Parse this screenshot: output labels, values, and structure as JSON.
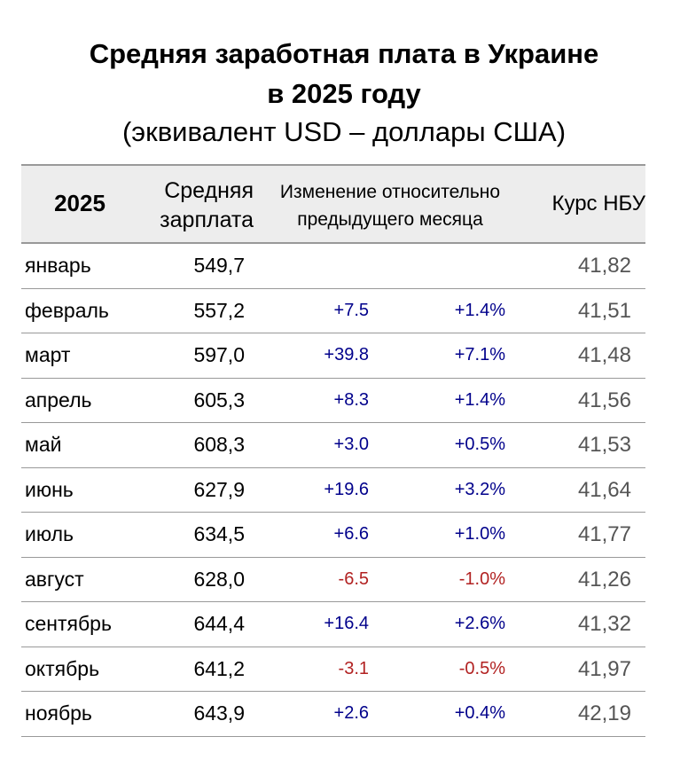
{
  "title_line1": "Средняя заработная плата в Украине",
  "title_line2": "в 2025 году",
  "subtitle": "(эквивалент USD – доллары США)",
  "header": {
    "year": "2025",
    "avg_line1": "Средняя",
    "avg_line2": "зарплата",
    "change_line1": "Изменение относительно",
    "change_line2": "предыдущего месяца",
    "rate": "Курс НБУ"
  },
  "colors": {
    "positive": "#00008b",
    "negative": "#b22222",
    "rate_text": "#555555",
    "header_bg": "#ededed"
  },
  "rows": [
    {
      "month": "январь",
      "avg": "549,7",
      "abs": "",
      "pct": "",
      "rate": "41,82",
      "sign": ""
    },
    {
      "month": "февраль",
      "avg": "557,2",
      "abs": "+7.5",
      "pct": "+1.4%",
      "rate": "41,51",
      "sign": "pos"
    },
    {
      "month": "март",
      "avg": "597,0",
      "abs": "+39.8",
      "pct": "+7.1%",
      "rate": "41,48",
      "sign": "pos"
    },
    {
      "month": "апрель",
      "avg": "605,3",
      "abs": "+8.3",
      "pct": "+1.4%",
      "rate": "41,56",
      "sign": "pos"
    },
    {
      "month": "май",
      "avg": "608,3",
      "abs": "+3.0",
      "pct": "+0.5%",
      "rate": "41,53",
      "sign": "pos"
    },
    {
      "month": "июнь",
      "avg": "627,9",
      "abs": "+19.6",
      "pct": "+3.2%",
      "rate": "41,64",
      "sign": "pos"
    },
    {
      "month": "июль",
      "avg": "634,5",
      "abs": "+6.6",
      "pct": "+1.0%",
      "rate": "41,77",
      "sign": "pos"
    },
    {
      "month": "август",
      "avg": "628,0",
      "abs": "-6.5",
      "pct": "-1.0%",
      "rate": "41,26",
      "sign": "neg"
    },
    {
      "month": "сентябрь",
      "avg": "644,4",
      "abs": "+16.4",
      "pct": "+2.6%",
      "rate": "41,32",
      "sign": "pos"
    },
    {
      "month": "октябрь",
      "avg": "641,2",
      "abs": "-3.1",
      "pct": "-0.5%",
      "rate": "41,97",
      "sign": "neg"
    },
    {
      "month": "ноябрь",
      "avg": "643,9",
      "abs": "+2.6",
      "pct": "+0.4%",
      "rate": "42,19",
      "sign": "pos"
    }
  ]
}
